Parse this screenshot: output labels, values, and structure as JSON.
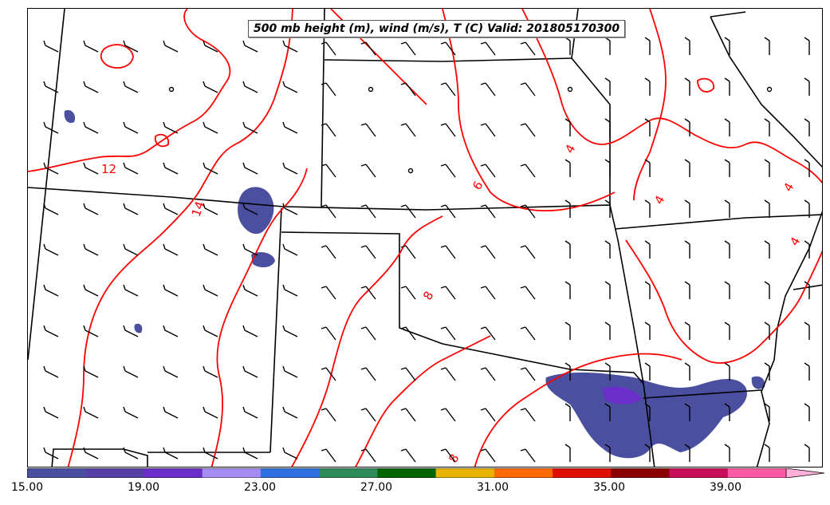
{
  "title": "500 mb height (m), wind (m/s), T (C) Valid: 201805170300",
  "temperature_contour_labels": [
    "12",
    "14",
    "4",
    "6",
    "8",
    "4",
    "4",
    "4",
    "8"
  ],
  "colorbar": {
    "ticks": [
      "15.00",
      "19.00",
      "23.00",
      "27.00",
      "31.00",
      "35.00",
      "39.00"
    ],
    "colors": [
      "#4b4fa0",
      "#5640a8",
      "#6a2fc8",
      "#a68cf5",
      "#2f6fe0",
      "#2e8b57",
      "#006400",
      "#e8b400",
      "#ff6a00",
      "#e01000",
      "#8b0000",
      "#c8105a",
      "#ff5aa8",
      "#ffb0d8"
    ]
  },
  "colors": {
    "contour": "#ff0000",
    "boundary": "#000000",
    "precip_dark": "#4b4fa0",
    "precip_core": "#6a2fc8"
  }
}
